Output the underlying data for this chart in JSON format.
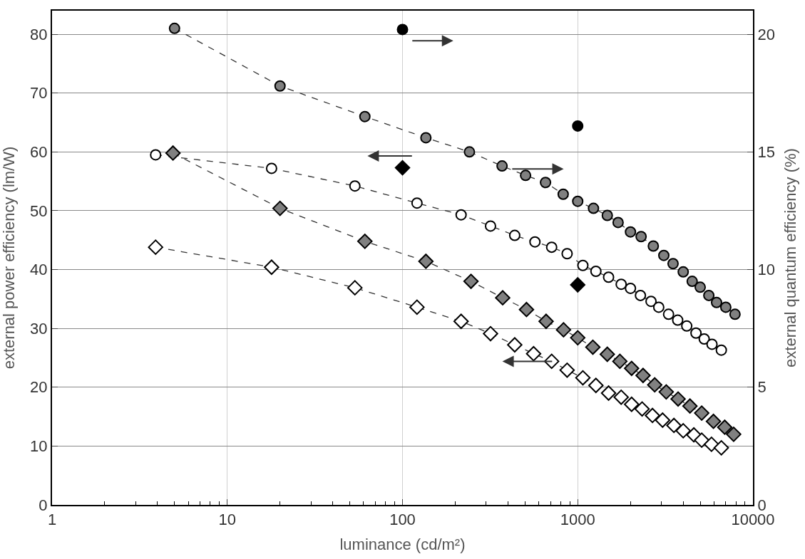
{
  "chart_data": {
    "type": "line",
    "xlabel": "luminance (cd/m²)",
    "ylabel": "external power efficiency (lm/W)",
    "y2label": "external quantum efficiency (%)",
    "log": "x",
    "grid": true,
    "line_style": "dashed",
    "xlim": [
      1,
      10000
    ],
    "xticks": [
      1,
      10,
      100,
      1000,
      10000
    ],
    "ylim": [
      0,
      84
    ],
    "yticks": [
      0,
      10,
      20,
      30,
      40,
      50,
      60,
      70,
      80
    ],
    "y2lim": [
      0,
      21
    ],
    "y2ticks": [
      0,
      5,
      10,
      15,
      20
    ],
    "series": [
      {
        "axis": "y2",
        "marker": "circle",
        "color": "#808080",
        "x": [
          5,
          20,
          61,
          136,
          241,
          370,
          504,
          655,
          826,
          1000,
          1230,
          1475,
          1700,
          2000,
          2300,
          2700,
          3100,
          3500,
          4000,
          4500,
          5000,
          5600,
          6200,
          7000,
          7900
        ],
        "values": [
          20.25,
          17.8,
          16.5,
          15.6,
          15.0,
          14.4,
          14.0,
          13.7,
          13.2,
          12.9,
          12.6,
          12.3,
          12.0,
          11.6,
          11.4,
          11.0,
          10.6,
          10.25,
          9.9,
          9.5,
          9.25,
          8.9,
          8.6,
          8.4,
          8.1
        ]
      },
      {
        "axis": "y",
        "marker": "circle",
        "color": "#ffffff",
        "x": [
          3.9,
          17.9,
          53.5,
          121,
          216,
          318,
          437,
          570,
          710,
          870,
          1070,
          1270,
          1500,
          1770,
          2000,
          2280,
          2620,
          2900,
          3300,
          3720,
          4190,
          4730,
          5270,
          5840,
          6600
        ],
        "values": [
          59.5,
          57.2,
          54.2,
          51.3,
          49.3,
          47.4,
          45.8,
          44.7,
          43.8,
          42.7,
          40.7,
          39.7,
          38.7,
          37.5,
          36.8,
          35.6,
          34.6,
          33.6,
          32.4,
          31.4,
          30.4,
          29.2,
          28.2,
          27.3,
          26.3
        ]
      },
      {
        "axis": "y2",
        "marker": "diamond",
        "color": "#808080",
        "x": [
          4.9,
          20,
          61,
          136,
          246,
          373,
          510,
          660,
          830,
          1000,
          1220,
          1475,
          1740,
          2030,
          2360,
          2750,
          3200,
          3740,
          4370,
          5100,
          5950,
          6900,
          7760
        ],
        "values": [
          14.95,
          12.6,
          11.2,
          10.35,
          9.5,
          8.8,
          8.3,
          7.8,
          7.44,
          7.1,
          6.7,
          6.4,
          6.1,
          5.8,
          5.5,
          5.1,
          4.8,
          4.5,
          4.2,
          3.9,
          3.55,
          3.3,
          3.0
        ]
      },
      {
        "axis": "y",
        "marker": "diamond",
        "color": "#ffffff",
        "x": [
          3.9,
          17.9,
          53.5,
          121,
          216,
          318,
          437,
          560,
          710,
          870,
          1070,
          1270,
          1500,
          1770,
          2030,
          2330,
          2670,
          3050,
          3540,
          4000,
          4600,
          5100,
          5800,
          6600
        ],
        "values": [
          43.8,
          40.4,
          36.9,
          33.6,
          31.2,
          29.1,
          27.2,
          25.7,
          24.4,
          22.9,
          21.6,
          20.3,
          19.0,
          18.3,
          17.1,
          16.3,
          15.2,
          14.4,
          13.5,
          12.6,
          11.9,
          11.0,
          10.3,
          9.7
        ]
      },
      {
        "type": "scatter",
        "axis": "y2",
        "marker": "circle",
        "color": "#000000",
        "x": [
          100,
          1000
        ],
        "values": [
          20.2,
          16.1
        ]
      },
      {
        "type": "scatter",
        "axis": "y",
        "marker": "diamond",
        "color": "#000000",
        "x": [
          100,
          1000
        ],
        "values": [
          57.3,
          37.4
        ]
      }
    ]
  }
}
